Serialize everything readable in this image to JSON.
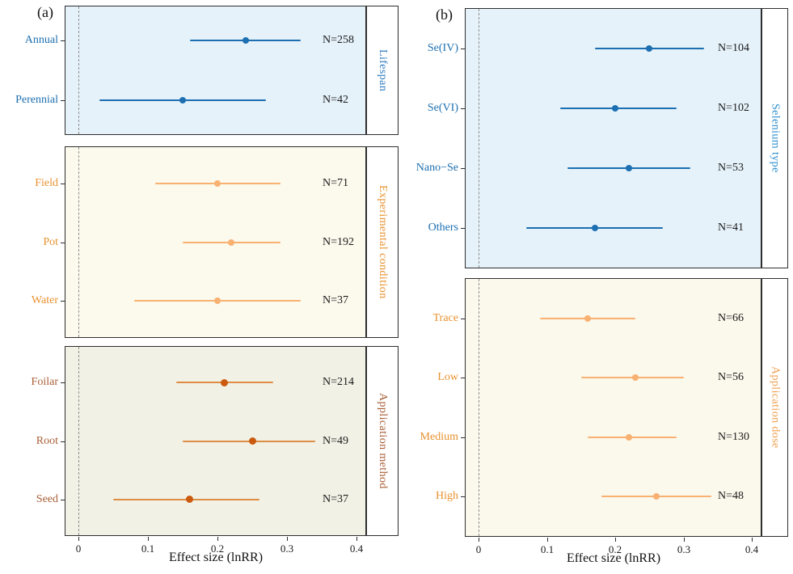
{
  "figure": {
    "panel_a_label": "(a)",
    "panel_b_label": "(b)"
  },
  "chart_data": {
    "type": "scatter",
    "subtype": "forest_plot_point_with_ci",
    "xlabel": "Effect size (lnRR)",
    "xlim": [
      -0.02,
      0.415
    ],
    "x_ticks": [
      0,
      0.1,
      0.2,
      0.3,
      0.4
    ],
    "x_tick_labels": [
      "0",
      "0.1",
      "0.2",
      "0.3",
      "0.4"
    ],
    "zero_reference_line": 0,
    "grid": false,
    "legend": "none",
    "panels": [
      {
        "label": "(a)",
        "facets": [
          {
            "group": "Lifespan",
            "colors": {
              "bg": "#e5f2fa",
              "line": "#1c6fb1",
              "point": "#1c6fb1",
              "label": "#1c6fb1",
              "strip": "#2f7cbe"
            },
            "rows": [
              {
                "category": "Annual",
                "n": "N=258",
                "mean": 0.24,
                "ci_low": 0.16,
                "ci_high": 0.32
              },
              {
                "category": "Perennial",
                "n": "N=42",
                "mean": 0.15,
                "ci_low": 0.03,
                "ci_high": 0.27
              }
            ]
          },
          {
            "group": "Experimental condition",
            "colors": {
              "bg": "#fcf9ed",
              "line": "#f9b171",
              "point": "#f9b171",
              "label": "#e8922f",
              "strip": "#e8922f"
            },
            "rows": [
              {
                "category": "Field",
                "n": "N=71",
                "mean": 0.2,
                "ci_low": 0.11,
                "ci_high": 0.29
              },
              {
                "category": "Pot",
                "n": "N=192",
                "mean": 0.22,
                "ci_low": 0.15,
                "ci_high": 0.29
              },
              {
                "category": "Water",
                "n": "N=37",
                "mean": 0.2,
                "ci_low": 0.08,
                "ci_high": 0.32
              }
            ]
          },
          {
            "group": "Application method",
            "colors": {
              "bg": "#f2f1e6",
              "line": "#de8e44",
              "point": "#cb5a0e",
              "label": "#a96038",
              "strip": "#a96038"
            },
            "rows": [
              {
                "category": "Foilar",
                "n": "N=214",
                "mean": 0.21,
                "ci_low": 0.14,
                "ci_high": 0.28
              },
              {
                "category": "Root",
                "n": "N=49",
                "mean": 0.25,
                "ci_low": 0.15,
                "ci_high": 0.34
              },
              {
                "category": "Seed",
                "n": "N=37",
                "mean": 0.16,
                "ci_low": 0.05,
                "ci_high": 0.26
              }
            ]
          }
        ]
      },
      {
        "label": "(b)",
        "facets": [
          {
            "group": "Selenium type",
            "colors": {
              "bg": "#e5f2fa",
              "line": "#1c6fb1",
              "point": "#1c6fb1",
              "label": "#1c6fb1",
              "strip": "#2f8fd0"
            },
            "rows": [
              {
                "category": "Se(IV)",
                "n": "N=104",
                "mean": 0.25,
                "ci_low": 0.17,
                "ci_high": 0.33
              },
              {
                "category": "Se(VI)",
                "n": "N=102",
                "mean": 0.2,
                "ci_low": 0.12,
                "ci_high": 0.29
              },
              {
                "category": "Nano−Se",
                "n": "N=53",
                "mean": 0.22,
                "ci_low": 0.13,
                "ci_high": 0.31
              },
              {
                "category": "Others",
                "n": "N=41",
                "mean": 0.17,
                "ci_low": 0.07,
                "ci_high": 0.27
              }
            ]
          },
          {
            "group": "Application dose",
            "colors": {
              "bg": "#fbf8ec",
              "line": "#f9b171",
              "point": "#f9b171",
              "label": "#e8922f",
              "strip": "#f0a151"
            },
            "rows": [
              {
                "category": "Trace",
                "n": "N=66",
                "mean": 0.16,
                "ci_low": 0.09,
                "ci_high": 0.23
              },
              {
                "category": "Low",
                "n": "N=56",
                "mean": 0.23,
                "ci_low": 0.15,
                "ci_high": 0.3
              },
              {
                "category": "Medium",
                "n": "N=130",
                "mean": 0.22,
                "ci_low": 0.16,
                "ci_high": 0.29
              },
              {
                "category": "High",
                "n": "N=48",
                "mean": 0.26,
                "ci_low": 0.18,
                "ci_high": 0.34
              }
            ]
          }
        ]
      }
    ]
  }
}
